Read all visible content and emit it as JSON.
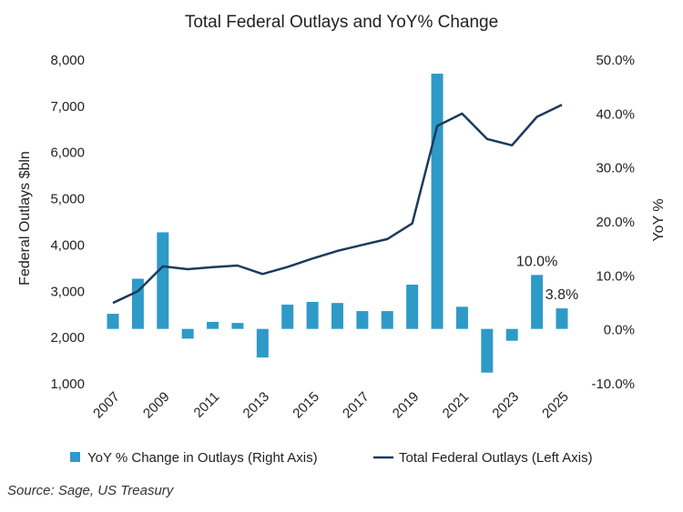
{
  "chart_data": {
    "type": "bar",
    "title": "Total Federal Outlays and YoY% Change",
    "ylabel_left": "Federal Outlays $bln",
    "ylabel_right": "YoY %",
    "x": [
      2007,
      2008,
      2009,
      2010,
      2011,
      2012,
      2013,
      2014,
      2015,
      2016,
      2017,
      2018,
      2019,
      2020,
      2021,
      2022,
      2023,
      2024,
      2025
    ],
    "x_tick_labels": [
      "2007",
      "2009",
      "2011",
      "2013",
      "2015",
      "2017",
      "2019",
      "2021",
      "2023",
      "2025"
    ],
    "ylim_left": [
      1000,
      8000
    ],
    "ylim_right": [
      -10,
      50
    ],
    "y_left_ticks": [
      "1,000",
      "2,000",
      "3,000",
      "4,000",
      "5,000",
      "6,000",
      "7,000",
      "8,000"
    ],
    "y_right_ticks": [
      "-10.0%",
      "0.0%",
      "10.0%",
      "20.0%",
      "30.0%",
      "40.0%",
      "50.0%"
    ],
    "series": [
      {
        "name": "YoY % Change in Outlays (Right Axis)",
        "type": "bar",
        "axis": "right",
        "color": "#2e9ac8",
        "values": [
          2.8,
          9.3,
          17.9,
          -1.8,
          1.3,
          1.1,
          -5.3,
          4.5,
          5.0,
          4.8,
          3.3,
          3.3,
          8.2,
          47.3,
          4.1,
          -8.1,
          -2.2,
          10.0,
          3.8
        ]
      },
      {
        "name": "Total Federal Outlays (Left Axis)",
        "type": "line",
        "axis": "left",
        "color": "#1b3a5c",
        "values": [
          2729,
          2983,
          3518,
          3457,
          3503,
          3537,
          3354,
          3506,
          3688,
          3853,
          3982,
          4109,
          4447,
          6554,
          6822,
          6273,
          6135,
          6752,
          7010
        ]
      }
    ],
    "annotations": [
      {
        "year": 2024,
        "text": "10.0%"
      },
      {
        "year": 2025,
        "text": "3.8%"
      }
    ],
    "legend_position": "bottom",
    "grid": false
  },
  "source": "Source: Sage, US Treasury"
}
